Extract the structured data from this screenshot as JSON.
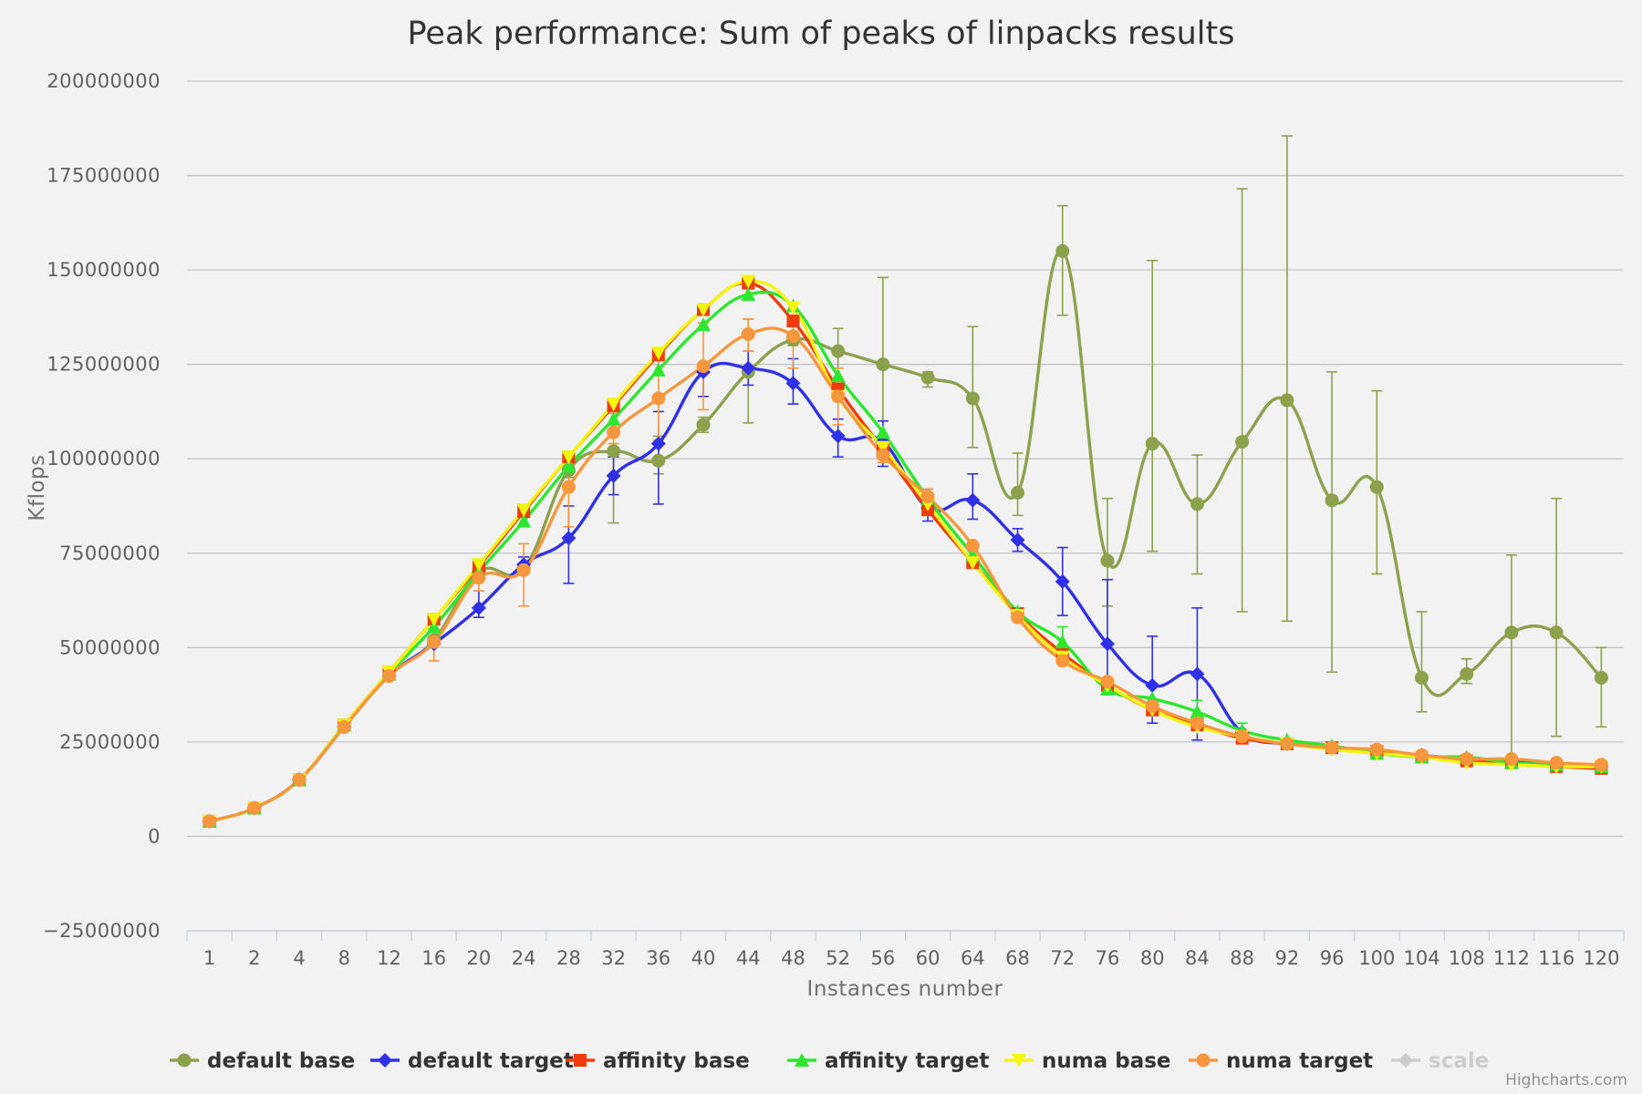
{
  "chart_data": {
    "type": "line",
    "title": "Peak performance: Sum of peaks of linpacks results",
    "xlabel": "Instances number",
    "ylabel": "Kflops",
    "categories": [
      "1",
      "2",
      "4",
      "8",
      "12",
      "16",
      "20",
      "24",
      "28",
      "32",
      "36",
      "40",
      "44",
      "48",
      "52",
      "56",
      "60",
      "64",
      "68",
      "72",
      "76",
      "80",
      "84",
      "88",
      "92",
      "96",
      "100",
      "104",
      "108",
      "112",
      "116",
      "120"
    ],
    "yticks": [
      "200000000",
      "175000000",
      "150000000",
      "125000000",
      "100000000",
      "75000000",
      "50000000",
      "25000000",
      "0",
      "−25000000"
    ],
    "ylim": [
      -25000000,
      200000000
    ],
    "legend_position": "bottom",
    "credits": "Highcharts.com",
    "series": [
      {
        "name": "default base",
        "color": "#8ba14c",
        "marker": "circle",
        "values": [
          4000000,
          7500000,
          15000000,
          29000000,
          42500000,
          52000000,
          70000000,
          71000000,
          97000000,
          102000000,
          99500000,
          109000000,
          123000000,
          131500000,
          128500000,
          125000000,
          121500000,
          116000000,
          91000000,
          155000000,
          73000000,
          104000000,
          88000000,
          104500000,
          115500000,
          89000000,
          92500000,
          42000000,
          43000000,
          54000000,
          54000000,
          42000000
        ],
        "errors": [
          [
            4000000,
            4000000
          ],
          [
            7500000,
            7500000
          ],
          [
            15000000,
            15000000
          ],
          [
            29000000,
            29000000
          ],
          [
            42500000,
            42500000
          ],
          [
            52000000,
            52000000
          ],
          [
            70000000,
            70000000
          ],
          [
            71000000,
            71000000
          ],
          [
            95000000,
            99000000
          ],
          [
            83000000,
            104000000
          ],
          [
            96000000,
            106000000
          ],
          [
            107000000,
            111000000
          ],
          [
            109500000,
            137000000
          ],
          [
            130000000,
            135000000
          ],
          [
            124000000,
            134500000
          ],
          [
            110000000,
            148000000
          ],
          [
            119000000,
            123000000
          ],
          [
            103000000,
            135000000
          ],
          [
            85000000,
            101500000
          ],
          [
            138000000,
            167000000
          ],
          [
            61000000,
            89500000
          ],
          [
            75500000,
            152500000
          ],
          [
            69500000,
            101000000
          ],
          [
            59500000,
            171500000
          ],
          [
            57000000,
            185500000
          ],
          [
            43500000,
            123000000
          ],
          [
            69500000,
            118000000
          ],
          [
            33000000,
            59500000
          ],
          [
            40500000,
            47000000
          ],
          [
            20000000,
            74500000
          ],
          [
            26500000,
            89500000
          ],
          [
            29000000,
            50000000
          ]
        ]
      },
      {
        "name": "default target",
        "color": "#3030e6",
        "marker": "diamond",
        "values": [
          4000000,
          7500000,
          15000000,
          29000000,
          42500000,
          51000000,
          60500000,
          72000000,
          79000000,
          95500000,
          104000000,
          123000000,
          124000000,
          120000000,
          106000000,
          104500000,
          87000000,
          89000000,
          78500000,
          67500000,
          51000000,
          40000000,
          43000000,
          27500000,
          24500000,
          23500000,
          22500000,
          21500000,
          20500000,
          20000000,
          19000000,
          18500000
        ],
        "errors": [
          [
            4000000,
            4000000
          ],
          [
            7500000,
            7500000
          ],
          [
            15000000,
            15000000
          ],
          [
            29000000,
            29000000
          ],
          [
            42500000,
            42500000
          ],
          [
            51000000,
            51000000
          ],
          [
            58000000,
            65000000
          ],
          [
            69500000,
            74000000
          ],
          [
            67000000,
            87500000
          ],
          [
            90500000,
            100500000
          ],
          [
            88000000,
            112500000
          ],
          [
            116500000,
            124000000
          ],
          [
            119500000,
            128500000
          ],
          [
            114500000,
            126500000
          ],
          [
            100500000,
            110500000
          ],
          [
            98000000,
            110000000
          ],
          [
            83500000,
            92000000
          ],
          [
            84000000,
            96000000
          ],
          [
            75500000,
            81500000
          ],
          [
            58500000,
            76500000
          ],
          [
            38000000,
            68000000
          ],
          [
            30000000,
            53000000
          ],
          [
            25500000,
            60500000
          ],
          [
            27500000,
            27500000
          ],
          [
            24500000,
            24500000
          ],
          [
            23500000,
            23500000
          ],
          [
            22500000,
            22500000
          ],
          [
            21500000,
            21500000
          ],
          [
            20500000,
            20500000
          ],
          [
            20000000,
            20000000
          ],
          [
            19000000,
            19000000
          ],
          [
            18500000,
            18500000
          ]
        ]
      },
      {
        "name": "affinity base",
        "color": "#f03c0a",
        "marker": "square",
        "values": [
          4000000,
          7500000,
          15000000,
          29500000,
          43500000,
          57500000,
          71500000,
          86000000,
          100500000,
          114000000,
          127500000,
          139500000,
          146500000,
          136500000,
          118500000,
          102500000,
          86500000,
          72500000,
          59000000,
          48500000,
          40000000,
          33500000,
          29500000,
          26000000,
          24500000,
          23500000,
          22500000,
          21000000,
          20000000,
          19500000,
          18500000,
          18000000
        ],
        "errors": []
      },
      {
        "name": "affinity target",
        "color": "#2ee62e",
        "marker": "triangle",
        "values": [
          4000000,
          7500000,
          15000000,
          29500000,
          43000000,
          55500000,
          70000000,
          83500000,
          98000000,
          110500000,
          123500000,
          135500000,
          143500000,
          140500000,
          122000000,
          107000000,
          89500000,
          74500000,
          59500000,
          51500000,
          39000000,
          36500000,
          33000000,
          28000000,
          25500000,
          24000000,
          22000000,
          21000000,
          21000000,
          19500000,
          19000000,
          18500000
        ],
        "errors": [
          [
            4000000,
            4000000
          ],
          [
            7500000,
            7500000
          ],
          [
            15000000,
            15000000
          ],
          [
            29500000,
            29500000
          ],
          [
            43000000,
            43000000
          ],
          [
            55500000,
            55500000
          ],
          [
            70000000,
            70000000
          ],
          [
            83500000,
            83500000
          ],
          [
            98000000,
            98000000
          ],
          [
            110500000,
            110500000
          ],
          [
            123500000,
            123500000
          ],
          [
            135500000,
            135500000
          ],
          [
            143500000,
            143500000
          ],
          [
            140500000,
            140500000
          ],
          [
            122000000,
            122000000
          ],
          [
            107000000,
            107000000
          ],
          [
            89500000,
            89500000
          ],
          [
            74500000,
            74500000
          ],
          [
            59500000,
            59500000
          ],
          [
            47500000,
            55500000
          ],
          [
            39000000,
            39000000
          ],
          [
            36500000,
            36500000
          ],
          [
            30000000,
            36000000
          ],
          [
            26000000,
            30000000
          ],
          [
            25500000,
            25500000
          ],
          [
            24000000,
            24000000
          ],
          [
            22000000,
            22000000
          ],
          [
            21000000,
            21000000
          ],
          [
            21000000,
            21000000
          ],
          [
            19500000,
            19500000
          ],
          [
            19000000,
            19000000
          ],
          [
            18500000,
            18500000
          ]
        ]
      },
      {
        "name": "numa base",
        "color": "#f5f50f",
        "marker": "triangle-down",
        "values": [
          4000000,
          7500000,
          15000000,
          29500000,
          43500000,
          57500000,
          72000000,
          86500000,
          100500000,
          114500000,
          128000000,
          139500000,
          147000000,
          140000000,
          116500000,
          103000000,
          88000000,
          72500000,
          58500000,
          47500000,
          40000000,
          33500000,
          29000000,
          26500000,
          24500000,
          23000000,
          22000000,
          21000000,
          19500000,
          19000000,
          18500000,
          18500000
        ],
        "errors": []
      },
      {
        "name": "numa target",
        "color": "#f7973d",
        "marker": "circle",
        "values": [
          4000000,
          7500000,
          15000000,
          29000000,
          42500000,
          51500000,
          68500000,
          70500000,
          92500000,
          107000000,
          116000000,
          124500000,
          133000000,
          132500000,
          116500000,
          101000000,
          90000000,
          77000000,
          58000000,
          46500000,
          41000000,
          34500000,
          30000000,
          26500000,
          24500000,
          23500000,
          23000000,
          21500000,
          20500000,
          20500000,
          19500000,
          19000000
        ],
        "errors": [
          [
            4000000,
            4000000
          ],
          [
            7500000,
            7500000
          ],
          [
            15000000,
            15000000
          ],
          [
            29000000,
            29000000
          ],
          [
            42500000,
            42500000
          ],
          [
            46500000,
            55000000
          ],
          [
            65000000,
            72000000
          ],
          [
            61000000,
            77500000
          ],
          [
            82000000,
            97000000
          ],
          [
            104000000,
            112000000
          ],
          [
            105000000,
            126000000
          ],
          [
            113000000,
            136000000
          ],
          [
            128500000,
            137000000
          ],
          [
            124000000,
            136000000
          ],
          [
            109000000,
            124000000
          ],
          [
            99000000,
            104000000
          ],
          [
            88000000,
            92000000
          ],
          [
            77000000,
            77000000
          ],
          [
            58000000,
            58000000
          ],
          [
            46500000,
            46500000
          ],
          [
            41000000,
            41000000
          ],
          [
            34500000,
            34500000
          ],
          [
            30000000,
            30000000
          ],
          [
            26500000,
            26500000
          ],
          [
            24500000,
            24500000
          ],
          [
            23500000,
            23500000
          ],
          [
            23000000,
            23000000
          ],
          [
            21500000,
            21500000
          ],
          [
            20500000,
            20500000
          ],
          [
            20500000,
            20500000
          ],
          [
            19500000,
            19500000
          ],
          [
            19000000,
            19000000
          ]
        ]
      }
    ],
    "hidden_series": [
      {
        "name": "scale",
        "color": "#cccccc",
        "marker": "diamond"
      }
    ]
  }
}
